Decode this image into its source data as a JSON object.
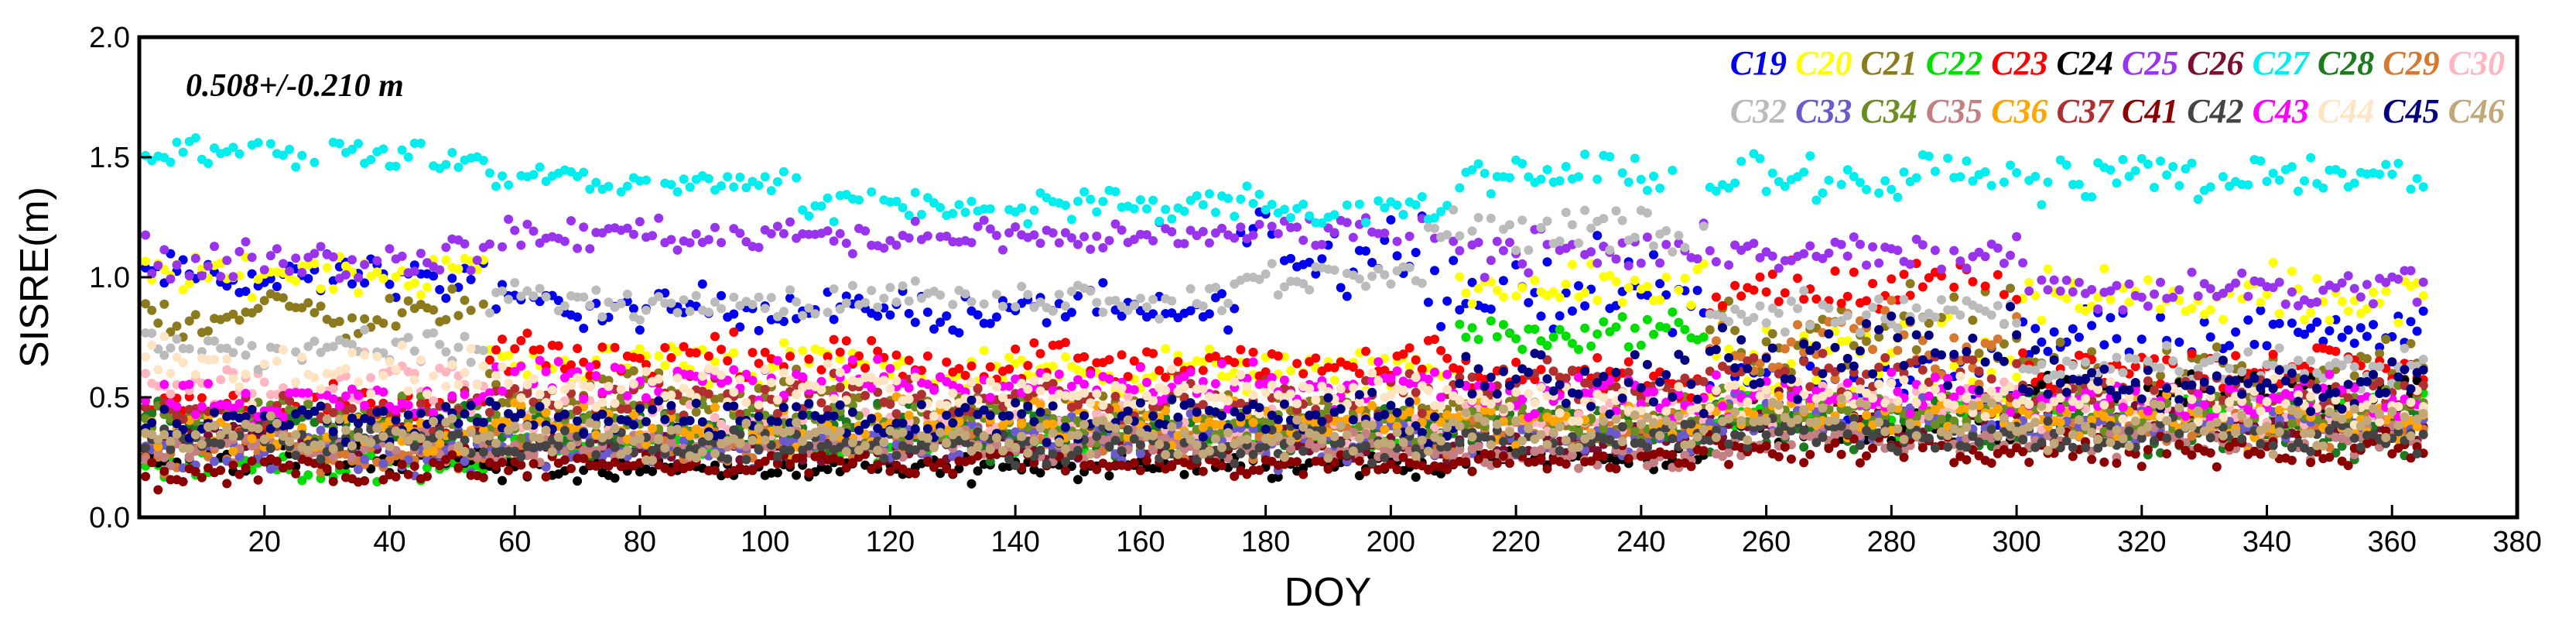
{
  "chart_data": {
    "type": "scatter",
    "xlabel": "DOY",
    "ylabel": "SISRE(m)",
    "xlim": [
      0,
      380
    ],
    "ylim": [
      0.0,
      2.0
    ],
    "x_ticks": [
      20,
      40,
      60,
      80,
      100,
      120,
      140,
      160,
      180,
      200,
      220,
      240,
      260,
      280,
      300,
      320,
      340,
      360,
      380
    ],
    "x_tick_labels": [
      "20",
      "40",
      "60",
      "80",
      "100",
      "120",
      "140",
      "160",
      "180",
      "200",
      "220",
      "240",
      "260",
      "280",
      "300",
      "320",
      "340",
      "360",
      "380"
    ],
    "y_ticks": [
      0.0,
      0.5,
      1.0,
      1.5,
      2.0
    ],
    "y_tick_labels": [
      "0.0",
      "0.5",
      "1.0",
      "1.5",
      "2.0"
    ],
    "annotation": "0.508+/-0.210 m",
    "legend_position": "top-right",
    "series": [
      {
        "name": "C19",
        "color": "#0000ee",
        "segments": [
          [
            1,
            55,
            1.0,
            0.05
          ],
          [
            56,
            110,
            0.87,
            0.05
          ],
          [
            111,
            175,
            0.86,
            0.05
          ],
          [
            176,
            205,
            1.13,
            0.1
          ],
          [
            206,
            250,
            0.94,
            0.1
          ],
          [
            251,
            300,
            0.55,
            0.08
          ],
          [
            301,
            365,
            0.78,
            0.06
          ]
        ]
      },
      {
        "name": "C20",
        "color": "#ffff00",
        "segments": [
          [
            1,
            55,
            1.02,
            0.05
          ],
          [
            56,
            110,
            0.65,
            0.06
          ],
          [
            111,
            210,
            0.61,
            0.05
          ],
          [
            211,
            250,
            0.96,
            0.06
          ],
          [
            251,
            300,
            0.62,
            0.12
          ],
          [
            301,
            365,
            0.9,
            0.07
          ]
        ]
      },
      {
        "name": "C21",
        "color": "#8b7b1e",
        "segments": [
          [
            1,
            55,
            0.85,
            0.05
          ],
          [
            56,
            120,
            0.52,
            0.05
          ],
          [
            121,
            210,
            0.44,
            0.04
          ],
          [
            211,
            250,
            0.42,
            0.05
          ],
          [
            251,
            300,
            0.78,
            0.1
          ],
          [
            301,
            365,
            0.6,
            0.06
          ]
        ]
      },
      {
        "name": "C22",
        "color": "#00dd00",
        "segments": [
          [
            1,
            55,
            0.22,
            0.04
          ],
          [
            56,
            120,
            0.3,
            0.04
          ],
          [
            121,
            210,
            0.33,
            0.04
          ],
          [
            211,
            250,
            0.77,
            0.04
          ],
          [
            251,
            300,
            0.45,
            0.05
          ],
          [
            301,
            365,
            0.46,
            0.05
          ]
        ]
      },
      {
        "name": "C23",
        "color": "#ff0000",
        "segments": [
          [
            1,
            55,
            0.45,
            0.05
          ],
          [
            56,
            120,
            0.66,
            0.05
          ],
          [
            121,
            210,
            0.64,
            0.05
          ],
          [
            211,
            250,
            0.58,
            0.05
          ],
          [
            251,
            300,
            0.96,
            0.06
          ],
          [
            301,
            365,
            0.63,
            0.05
          ]
        ]
      },
      {
        "name": "C24",
        "color": "#000000",
        "segments": [
          [
            1,
            55,
            0.25,
            0.04
          ],
          [
            56,
            120,
            0.2,
            0.03
          ],
          [
            121,
            210,
            0.21,
            0.03
          ],
          [
            211,
            250,
            0.26,
            0.03
          ],
          [
            251,
            300,
            0.36,
            0.05
          ],
          [
            301,
            365,
            0.52,
            0.05
          ]
        ]
      },
      {
        "name": "C25",
        "color": "#9933ee",
        "segments": [
          [
            1,
            55,
            1.08,
            0.05
          ],
          [
            56,
            110,
            1.18,
            0.04
          ],
          [
            111,
            175,
            1.17,
            0.04
          ],
          [
            176,
            210,
            1.2,
            0.04
          ],
          [
            211,
            250,
            1.1,
            0.06
          ],
          [
            251,
            300,
            1.1,
            0.04
          ],
          [
            301,
            365,
            0.95,
            0.05
          ]
        ]
      },
      {
        "name": "C26",
        "color": "#7a1030",
        "segments": [
          [
            1,
            55,
            0.32,
            0.04
          ],
          [
            56,
            120,
            0.3,
            0.04
          ],
          [
            121,
            210,
            0.3,
            0.04
          ],
          [
            211,
            250,
            0.32,
            0.04
          ],
          [
            251,
            300,
            0.42,
            0.05
          ],
          [
            301,
            365,
            0.4,
            0.05
          ]
        ]
      },
      {
        "name": "C27",
        "color": "#00eeee",
        "segments": [
          [
            1,
            55,
            1.52,
            0.04
          ],
          [
            56,
            105,
            1.4,
            0.04
          ],
          [
            106,
            180,
            1.3,
            0.04
          ],
          [
            181,
            210,
            1.28,
            0.04
          ],
          [
            211,
            245,
            1.42,
            0.05
          ],
          [
            250,
            365,
            1.42,
            0.05
          ]
        ]
      },
      {
        "name": "C28",
        "color": "#1e7a1e",
        "segments": [
          [
            1,
            55,
            0.38,
            0.06
          ],
          [
            56,
            120,
            0.36,
            0.06
          ],
          [
            121,
            210,
            0.36,
            0.06
          ],
          [
            211,
            250,
            0.4,
            0.06
          ],
          [
            251,
            300,
            0.37,
            0.06
          ],
          [
            301,
            365,
            0.36,
            0.06
          ]
        ]
      },
      {
        "name": "C29",
        "color": "#d8772e",
        "segments": [
          [
            1,
            55,
            0.25,
            0.04
          ],
          [
            56,
            120,
            0.32,
            0.05
          ],
          [
            121,
            210,
            0.33,
            0.05
          ],
          [
            211,
            250,
            0.37,
            0.05
          ],
          [
            251,
            300,
            0.72,
            0.1
          ],
          [
            301,
            365,
            0.38,
            0.05
          ]
        ]
      },
      {
        "name": "C30",
        "color": "#ffb6c1",
        "segments": [
          [
            1,
            55,
            0.55,
            0.06
          ],
          [
            56,
            120,
            0.4,
            0.05
          ],
          [
            121,
            210,
            0.4,
            0.05
          ],
          [
            211,
            250,
            0.42,
            0.05
          ],
          [
            251,
            300,
            0.48,
            0.05
          ],
          [
            301,
            365,
            0.45,
            0.05
          ]
        ]
      },
      {
        "name": "C32",
        "color": "#bbbbbb",
        "segments": [
          [
            1,
            55,
            0.7,
            0.05
          ],
          [
            56,
            110,
            0.9,
            0.04
          ],
          [
            111,
            175,
            0.91,
            0.04
          ],
          [
            176,
            205,
            1.0,
            0.05
          ],
          [
            206,
            250,
            1.2,
            0.06
          ],
          [
            251,
            300,
            0.85,
            0.05
          ],
          [
            301,
            365,
            0.62,
            0.05
          ]
        ]
      },
      {
        "name": "C33",
        "color": "#6a5acd",
        "segments": [
          [
            1,
            55,
            0.27,
            0.05
          ],
          [
            56,
            120,
            0.3,
            0.05
          ],
          [
            121,
            210,
            0.32,
            0.05
          ],
          [
            211,
            250,
            0.34,
            0.05
          ],
          [
            251,
            300,
            0.42,
            0.06
          ],
          [
            301,
            365,
            0.4,
            0.05
          ]
        ]
      },
      {
        "name": "C34",
        "color": "#6b8e23",
        "segments": [
          [
            1,
            55,
            0.42,
            0.05
          ],
          [
            56,
            120,
            0.4,
            0.05
          ],
          [
            121,
            210,
            0.4,
            0.05
          ],
          [
            211,
            250,
            0.4,
            0.05
          ],
          [
            251,
            300,
            0.46,
            0.05
          ],
          [
            301,
            365,
            0.44,
            0.05
          ]
        ]
      },
      {
        "name": "C35",
        "color": "#c47f82",
        "segments": [
          [
            1,
            55,
            0.3,
            0.04
          ],
          [
            56,
            120,
            0.3,
            0.04
          ],
          [
            121,
            210,
            0.3,
            0.04
          ],
          [
            211,
            250,
            0.25,
            0.03
          ],
          [
            251,
            300,
            0.32,
            0.04
          ],
          [
            301,
            365,
            0.32,
            0.04
          ]
        ]
      },
      {
        "name": "C36",
        "color": "#ffa500",
        "segments": [
          [
            1,
            55,
            0.35,
            0.05
          ],
          [
            56,
            120,
            0.38,
            0.05
          ],
          [
            121,
            210,
            0.4,
            0.05
          ],
          [
            211,
            250,
            0.4,
            0.05
          ],
          [
            251,
            300,
            0.42,
            0.05
          ],
          [
            301,
            365,
            0.4,
            0.05
          ]
        ]
      },
      {
        "name": "C37",
        "color": "#b03030",
        "segments": [
          [
            1,
            55,
            0.45,
            0.05
          ],
          [
            56,
            120,
            0.5,
            0.05
          ],
          [
            121,
            210,
            0.5,
            0.05
          ],
          [
            211,
            250,
            0.55,
            0.05
          ],
          [
            251,
            300,
            0.6,
            0.06
          ],
          [
            301,
            365,
            0.52,
            0.05
          ]
        ]
      },
      {
        "name": "C41",
        "color": "#8b0000",
        "segments": [
          [
            1,
            55,
            0.2,
            0.04
          ],
          [
            56,
            120,
            0.22,
            0.03
          ],
          [
            121,
            210,
            0.22,
            0.03
          ],
          [
            211,
            250,
            0.24,
            0.03
          ],
          [
            251,
            300,
            0.28,
            0.04
          ],
          [
            301,
            365,
            0.28,
            0.04
          ]
        ]
      },
      {
        "name": "C42",
        "color": "#444444",
        "segments": [
          [
            1,
            55,
            0.33,
            0.04
          ],
          [
            56,
            120,
            0.3,
            0.04
          ],
          [
            121,
            210,
            0.3,
            0.04
          ],
          [
            211,
            250,
            0.32,
            0.04
          ],
          [
            251,
            300,
            0.35,
            0.04
          ],
          [
            301,
            365,
            0.34,
            0.04
          ]
        ]
      },
      {
        "name": "C43",
        "color": "#ff00ff",
        "segments": [
          [
            1,
            55,
            0.48,
            0.05
          ],
          [
            56,
            120,
            0.58,
            0.05
          ],
          [
            121,
            210,
            0.55,
            0.05
          ],
          [
            211,
            250,
            0.5,
            0.05
          ],
          [
            251,
            300,
            0.52,
            0.05
          ],
          [
            301,
            365,
            0.48,
            0.05
          ]
        ]
      },
      {
        "name": "C44",
        "color": "#ffe4c4",
        "segments": [
          [
            1,
            55,
            0.62,
            0.06
          ],
          [
            56,
            120,
            0.55,
            0.05
          ],
          [
            121,
            210,
            0.52,
            0.05
          ],
          [
            211,
            250,
            0.48,
            0.05
          ],
          [
            251,
            300,
            0.5,
            0.05
          ],
          [
            301,
            365,
            0.48,
            0.05
          ]
        ]
      },
      {
        "name": "C45",
        "color": "#000080",
        "segments": [
          [
            1,
            55,
            0.4,
            0.05
          ],
          [
            56,
            120,
            0.42,
            0.05
          ],
          [
            121,
            210,
            0.42,
            0.05
          ],
          [
            211,
            250,
            0.55,
            0.08
          ],
          [
            251,
            300,
            0.7,
            0.1
          ],
          [
            301,
            365,
            0.55,
            0.06
          ]
        ]
      },
      {
        "name": "C46",
        "color": "#c2a878",
        "segments": [
          [
            1,
            55,
            0.35,
            0.05
          ],
          [
            56,
            120,
            0.33,
            0.05
          ],
          [
            121,
            210,
            0.33,
            0.05
          ],
          [
            211,
            250,
            0.36,
            0.05
          ],
          [
            251,
            300,
            0.4,
            0.05
          ],
          [
            301,
            365,
            0.38,
            0.05
          ]
        ]
      }
    ]
  }
}
